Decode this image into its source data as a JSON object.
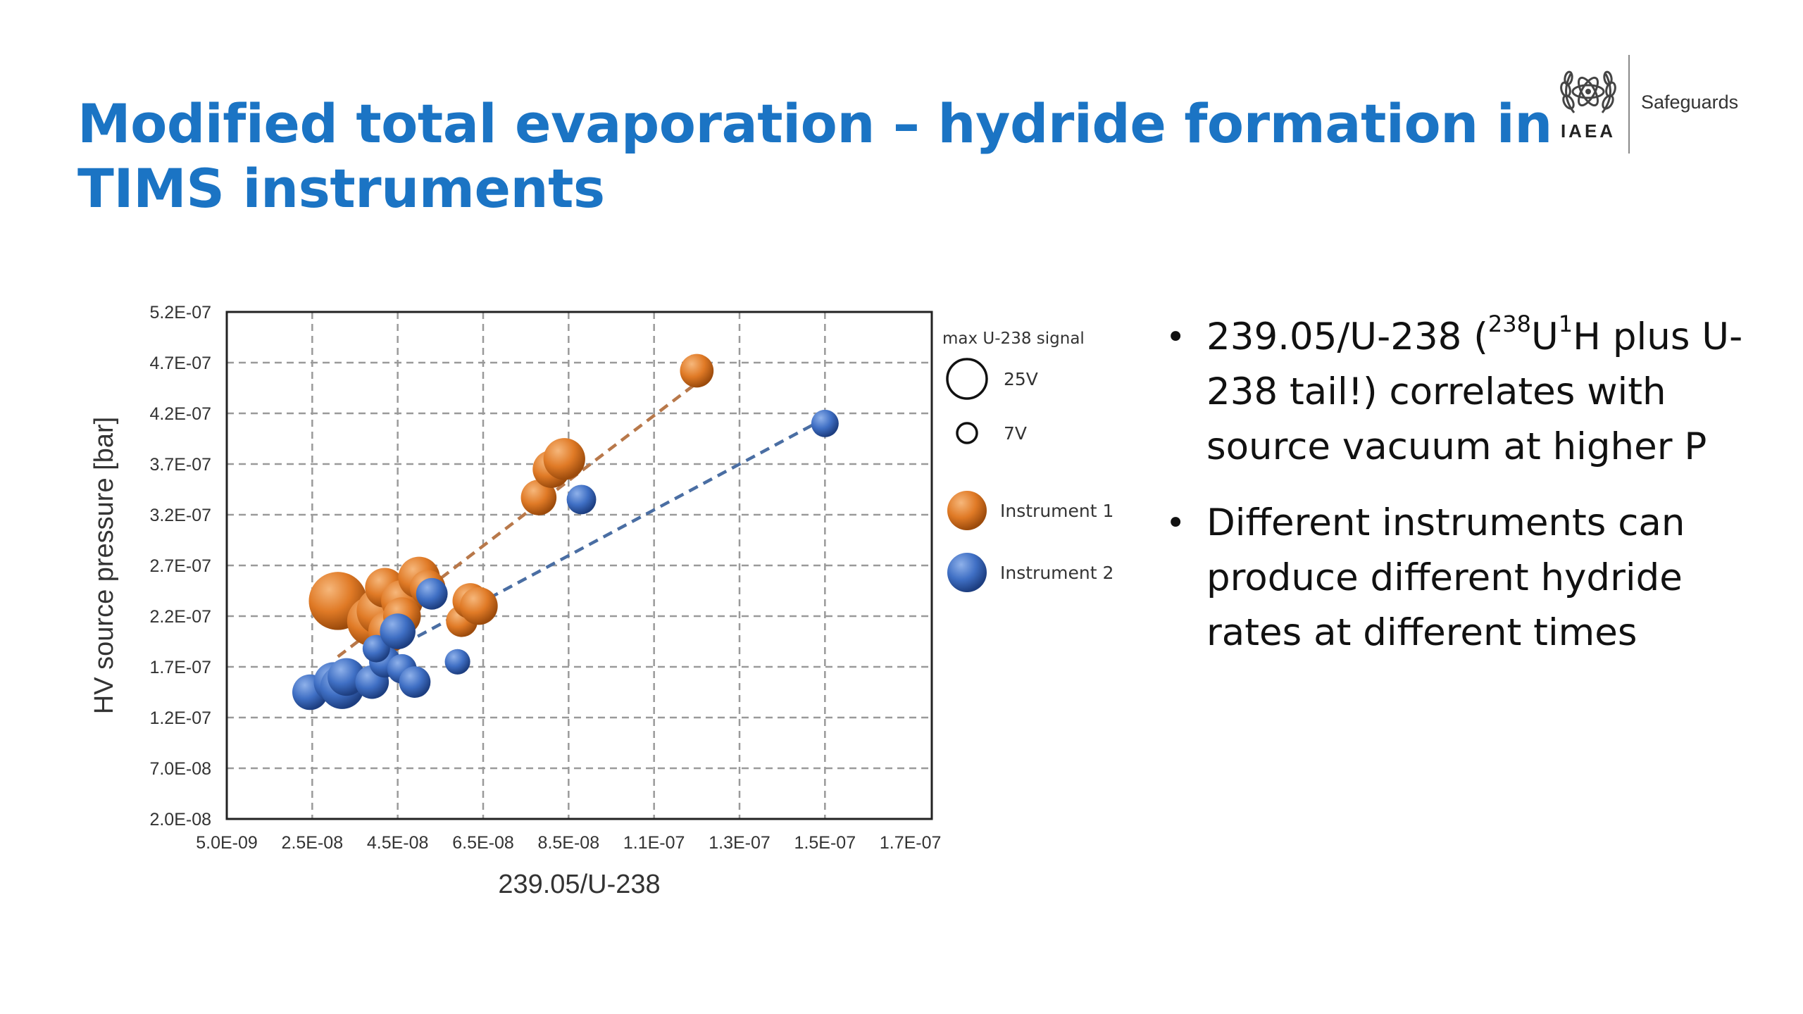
{
  "slide": {
    "title_line1": "Modified total evaporation – hydride formation in",
    "title_line2": "TIMS instruments"
  },
  "logo": {
    "org": "IAEA",
    "department": "Safeguards"
  },
  "bullets": [
    {
      "parts": [
        "239.05/U-238 (",
        "238",
        "U",
        "1",
        "H plus U-238 tail!) correlates with source vacuum at higher P"
      ]
    },
    {
      "text": "Different instruments can produce different hydride rates at different times"
    }
  ],
  "chart_data": {
    "type": "scatter",
    "title": "",
    "xlabel": "239.05/U-238",
    "ylabel": "HV source pressure [bar]",
    "xlim": [
      5e-09,
      1.7e-07
    ],
    "ylim": [
      2e-08,
      5.2e-07
    ],
    "xticks": [
      5e-09,
      2.5e-08,
      4.5e-08,
      6.5e-08,
      8.5e-08,
      1.05e-07,
      1.25e-07,
      1.45e-07,
      1.65e-07
    ],
    "xtick_labels": [
      "5.0E-09",
      "2.5E-08",
      "4.5E-08",
      "6.5E-08",
      "8.5E-08",
      "1.1E-07",
      "1.3E-07",
      "1.5E-07",
      "1.7E-07"
    ],
    "yticks": [
      2e-08,
      7e-08,
      1.2e-07,
      1.7e-07,
      2.2e-07,
      2.7e-07,
      3.2e-07,
      3.7e-07,
      4.2e-07,
      4.7e-07,
      5.2e-07
    ],
    "ytick_labels": [
      "2.0E-08",
      "7.0E-08",
      "1.2E-07",
      "1.7E-07",
      "2.2E-07",
      "2.7E-07",
      "3.2E-07",
      "3.7E-07",
      "4.2E-07",
      "4.7E-07",
      "5.2E-07"
    ],
    "grid": true,
    "bubble_legend": {
      "title": "max U-238 signal",
      "entries": [
        {
          "label": "25V",
          "signal": 25
        },
        {
          "label": "7V",
          "signal": 7
        }
      ]
    },
    "legend_position": "right",
    "series": [
      {
        "name": "Instrument 1",
        "color": "#e07a26",
        "trendline": {
          "x": [
            3.1e-08,
            1.15e-07
          ],
          "y": [
            1.8e-07,
            4.5e-07
          ]
        },
        "points": [
          {
            "x": 3.1e-08,
            "y": 2.35e-07,
            "size": 25
          },
          {
            "x": 3.9e-08,
            "y": 2.15e-07,
            "size": 21
          },
          {
            "x": 4.1e-08,
            "y": 2.25e-07,
            "size": 20
          },
          {
            "x": 4.3e-08,
            "y": 2.05e-07,
            "size": 17
          },
          {
            "x": 4.2e-08,
            "y": 2.48e-07,
            "size": 16
          },
          {
            "x": 4.6e-08,
            "y": 2.35e-07,
            "size": 17
          },
          {
            "x": 4.6e-08,
            "y": 2.2e-07,
            "size": 15
          },
          {
            "x": 5e-08,
            "y": 2.58e-07,
            "size": 17
          },
          {
            "x": 5.2e-08,
            "y": 2.48e-07,
            "size": 14
          },
          {
            "x": 6e-08,
            "y": 2.15e-07,
            "size": 12
          },
          {
            "x": 6.2e-08,
            "y": 2.35e-07,
            "size": 14
          },
          {
            "x": 6.4e-08,
            "y": 2.3e-07,
            "size": 15
          },
          {
            "x": 7.8e-08,
            "y": 3.37e-07,
            "size": 14
          },
          {
            "x": 8.1e-08,
            "y": 3.65e-07,
            "size": 15
          },
          {
            "x": 8.4e-08,
            "y": 3.75e-07,
            "size": 17
          },
          {
            "x": 1.15e-07,
            "y": 4.62e-07,
            "size": 13
          }
        ]
      },
      {
        "name": "Instrument 2",
        "color": "#3f6fc4",
        "trendline": {
          "x": [
            4.3e-08,
            1.45e-07
          ],
          "y": [
            1.85e-07,
            4.15e-07
          ]
        },
        "points": [
          {
            "x": 2.45e-08,
            "y": 1.45e-07,
            "size": 14
          },
          {
            "x": 3e-08,
            "y": 1.55e-07,
            "size": 16
          },
          {
            "x": 3.2e-08,
            "y": 1.5e-07,
            "size": 18
          },
          {
            "x": 3.3e-08,
            "y": 1.6e-07,
            "size": 15
          },
          {
            "x": 3.9e-08,
            "y": 1.55e-07,
            "size": 13
          },
          {
            "x": 4.2e-08,
            "y": 1.75e-07,
            "size": 12
          },
          {
            "x": 4e-08,
            "y": 1.88e-07,
            "size": 10
          },
          {
            "x": 4.5e-08,
            "y": 2.05e-07,
            "size": 14
          },
          {
            "x": 4.6e-08,
            "y": 1.68e-07,
            "size": 11
          },
          {
            "x": 4.9e-08,
            "y": 1.55e-07,
            "size": 12
          },
          {
            "x": 5.3e-08,
            "y": 2.42e-07,
            "size": 12
          },
          {
            "x": 5.9e-08,
            "y": 1.75e-07,
            "size": 9
          },
          {
            "x": 8.8e-08,
            "y": 3.35e-07,
            "size": 11
          },
          {
            "x": 1.45e-07,
            "y": 4.1e-07,
            "size": 10
          }
        ]
      }
    ]
  }
}
